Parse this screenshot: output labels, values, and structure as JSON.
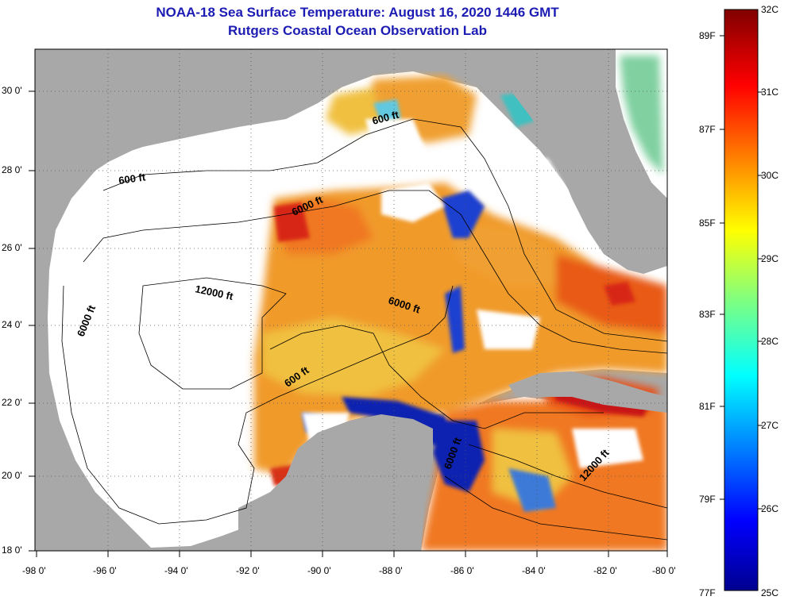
{
  "header": {
    "title": "NOAA-18 Sea Surface Temperature:  August 16, 2020 1446 GMT",
    "subtitle": "Rutgers Coastal Ocean Observation Lab"
  },
  "map": {
    "lon_range": [
      -98,
      -80
    ],
    "lat_range": [
      18,
      31
    ],
    "x_ticks": [
      "-98 0'",
      "-96 0'",
      "-94 0'",
      "-92 0'",
      "-90 0'",
      "-88 0'",
      "-86 0'",
      "-84 0'",
      "-82 0'",
      "-80 0'"
    ],
    "y_ticks": [
      "30 0'",
      "28 0'",
      "26 0'",
      "24 0'",
      "22 0'",
      "20 0'",
      "18 0'"
    ],
    "grid": "dotted",
    "contours": [
      "600 ft",
      "6000 ft",
      "12000 ft",
      "600 ft",
      "6000 ft",
      "6000 ft",
      "600 ft",
      "6000 ft",
      "12000 ft"
    ],
    "colors": {
      "land": "#a8a8a8",
      "cloud": "#ffffff",
      "warm": "#f08020",
      "hot": "#c81414",
      "cool": "#1e40d0"
    }
  },
  "colorbar": {
    "min_c": 25,
    "max_c": 32,
    "celsius_labels": [
      "32C",
      "31C",
      "30C",
      "29C",
      "28C",
      "27C",
      "26C",
      "25C"
    ],
    "fahrenheit_labels": [
      "89F",
      "87F",
      "85F",
      "83F",
      "81F",
      "79F",
      "77F"
    ]
  }
}
